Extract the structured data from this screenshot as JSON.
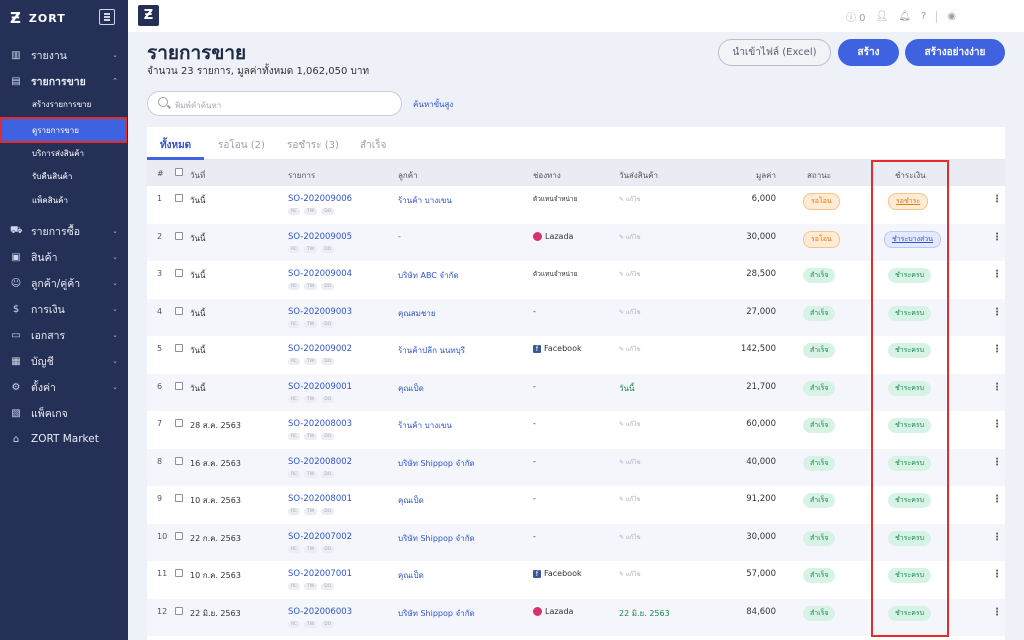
{
  "brand": {
    "name": "ZORT",
    "mark": "Ƶ"
  },
  "topbar": {
    "count": "0"
  },
  "nav": [
    {
      "label": "รายงาน",
      "icon": "chart-icon",
      "bold": false
    },
    {
      "label": "รายการขาย",
      "icon": "cart-icon",
      "bold": true
    },
    {
      "label": "รายการซื้อ",
      "icon": "basket-icon",
      "bold": false
    },
    {
      "label": "สินค้า",
      "icon": "box-icon",
      "bold": false
    },
    {
      "label": "ลูกค้า/คู่ค้า",
      "icon": "users-icon",
      "bold": false
    },
    {
      "label": "การเงิน",
      "icon": "money-icon",
      "bold": false
    },
    {
      "label": "เอกสาร",
      "icon": "document-icon",
      "bold": false
    },
    {
      "label": "บัญชี",
      "icon": "ledger-icon",
      "bold": false
    },
    {
      "label": "ตั้งค่า",
      "icon": "gear-icon",
      "bold": false
    },
    {
      "label": "แพ็คเกจ",
      "icon": "package-icon",
      "bold": false
    },
    {
      "label": "ZORT Market",
      "icon": "store-icon",
      "bold": false
    }
  ],
  "subnav": [
    "สร้างรายการขาย",
    "ดูรายการขาย",
    "บริการส่งสินค้า",
    "รับคืนสินค้า",
    "แพ็คสินค้า"
  ],
  "page": {
    "title": "รายการขาย",
    "subtitle": "จำนวน 23 รายการ, มูลค่าทั้งหมด 1,062,050 บาท",
    "btn_import": "นำเข้าไฟล์ (Excel)",
    "btn_create": "สร้าง",
    "btn_easy": "สร้างอย่างง่าย",
    "search_placeholder": "พิมพ์คำค้นหา",
    "advanced": "ค้นหาขั้นสูง"
  },
  "tabs": [
    "ทั้งหมด",
    "รอโอน (2)",
    "รอชำระ (3)",
    "สำเร็จ"
  ],
  "columns": {
    "num": "#",
    "date": "วันที่",
    "order": "รายการ",
    "customer": "ลูกค้า",
    "channel": "ช่องทาง",
    "ship_date": "วันส่งสินค้า",
    "amount": "มูลค่า",
    "status": "สถานะ",
    "payment": "ชำระเงิน"
  },
  "mini_tags": [
    "RC",
    "TW",
    "DO"
  ],
  "ship_placeholder": "แก้ไข",
  "rows": [
    {
      "n": "1",
      "date": "วันนี้",
      "order": "SO-202009006",
      "customer": "ร้านค้า บางเขน",
      "channel": "ตัวแทนจำหน่าย",
      "ch_type": "text",
      "ship": "",
      "amount": "6,000",
      "status": "รอโอน",
      "st": "orange",
      "pay": "รอชำระ",
      "pt": "orange"
    },
    {
      "n": "2",
      "date": "วันนี้",
      "order": "SO-202009005",
      "customer": "-",
      "channel": "Lazada",
      "ch_type": "lazada",
      "ship": "",
      "amount": "30,000",
      "status": "รอโอน",
      "st": "orange",
      "pay": "ชำระบางส่วน",
      "pt": "blue"
    },
    {
      "n": "3",
      "date": "วันนี้",
      "order": "SO-202009004",
      "customer": "บริษัท ABC จำกัด",
      "channel": "ตัวแทนจำหน่าย",
      "ch_type": "text",
      "ship": "",
      "amount": "28,500",
      "status": "สำเร็จ",
      "st": "green",
      "pay": "ชำระครบ",
      "pt": "green"
    },
    {
      "n": "4",
      "date": "วันนี้",
      "order": "SO-202009003",
      "customer": "คุณสมชาย",
      "channel": "-",
      "ch_type": "text",
      "ship": "",
      "amount": "27,000",
      "status": "สำเร็จ",
      "st": "green",
      "pay": "ชำระครบ",
      "pt": "green"
    },
    {
      "n": "5",
      "date": "วันนี้",
      "order": "SO-202009002",
      "customer": "ร้านค้าปลีก นนทบุรี",
      "channel": "Facebook",
      "ch_type": "facebook",
      "ship": "",
      "amount": "142,500",
      "status": "สำเร็จ",
      "st": "green",
      "pay": "ชำระครบ",
      "pt": "green"
    },
    {
      "n": "6",
      "date": "วันนี้",
      "order": "SO-202009001",
      "customer": "คุณเป็ด",
      "channel": "-",
      "ch_type": "text",
      "ship": "วันนี้",
      "amount": "21,700",
      "status": "สำเร็จ",
      "st": "green",
      "pay": "ชำระครบ",
      "pt": "green"
    },
    {
      "n": "7",
      "date": "28 ส.ค. 2563",
      "order": "SO-202008003",
      "customer": "ร้านค้า บางเขน",
      "channel": "-",
      "ch_type": "text",
      "ship": "",
      "amount": "60,000",
      "status": "สำเร็จ",
      "st": "green",
      "pay": "ชำระครบ",
      "pt": "green"
    },
    {
      "n": "8",
      "date": "16 ส.ค. 2563",
      "order": "SO-202008002",
      "customer": "บริษัท Shippop จำกัด",
      "channel": "-",
      "ch_type": "text",
      "ship": "",
      "amount": "40,000",
      "status": "สำเร็จ",
      "st": "green",
      "pay": "ชำระครบ",
      "pt": "green"
    },
    {
      "n": "9",
      "date": "10 ส.ค. 2563",
      "order": "SO-202008001",
      "customer": "คุณเป็ด",
      "channel": "-",
      "ch_type": "text",
      "ship": "",
      "amount": "91,200",
      "status": "สำเร็จ",
      "st": "green",
      "pay": "ชำระครบ",
      "pt": "green"
    },
    {
      "n": "10",
      "date": "22 ก.ค. 2563",
      "order": "SO-202007002",
      "customer": "บริษัท Shippop จำกัด",
      "channel": "-",
      "ch_type": "text",
      "ship": "",
      "amount": "30,000",
      "status": "สำเร็จ",
      "st": "green",
      "pay": "ชำระครบ",
      "pt": "green"
    },
    {
      "n": "11",
      "date": "10 ก.ค. 2563",
      "order": "SO-202007001",
      "customer": "คุณเป็ด",
      "channel": "Facebook",
      "ch_type": "facebook",
      "ship": "",
      "amount": "57,000",
      "status": "สำเร็จ",
      "st": "green",
      "pay": "ชำระครบ",
      "pt": "green"
    },
    {
      "n": "12",
      "date": "22 มิ.ย. 2563",
      "order": "SO-202006003",
      "customer": "บริษัท Shippop จำกัด",
      "channel": "Lazada",
      "ch_type": "lazada",
      "ship": "22 มิ.ย. 2563",
      "amount": "84,600",
      "status": "สำเร็จ",
      "st": "green",
      "pay": "ชำระครบ",
      "pt": "green"
    }
  ]
}
